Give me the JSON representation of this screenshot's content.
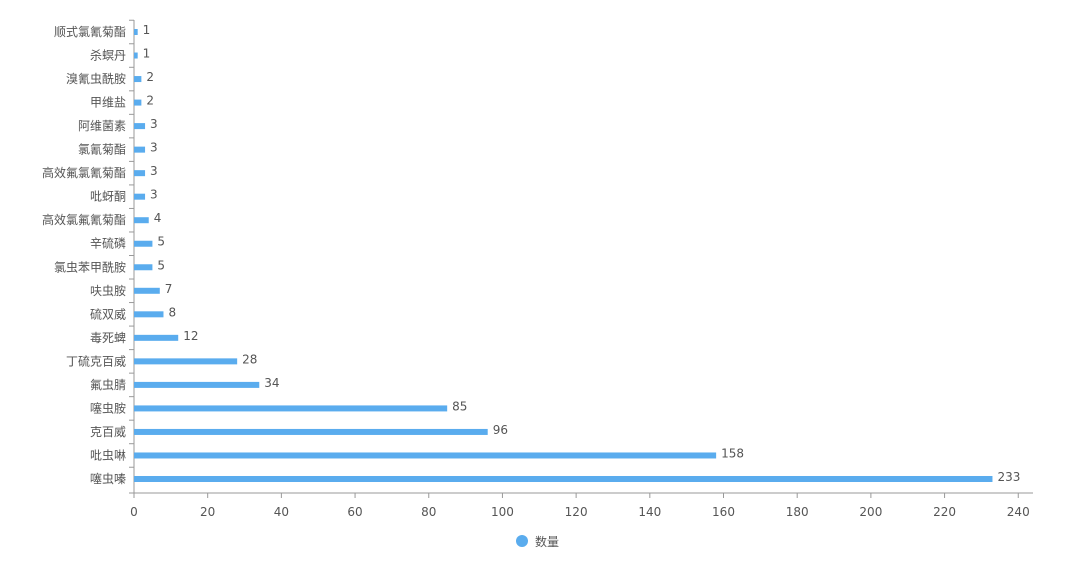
{
  "chart_data": {
    "type": "bar",
    "orientation": "horizontal",
    "categories": [
      "顺式氯氰菊酯",
      "杀螟丹",
      "溴氰虫酰胺",
      "甲维盐",
      "阿维菌素",
      "氯氰菊酯",
      "高效氟氯氰菊酯",
      "吡蚜酮",
      "高效氯氟氰菊酯",
      "辛硫磷",
      "氯虫苯甲酰胺",
      "呋虫胺",
      "硫双威",
      "毒死蜱",
      "丁硫克百威",
      "氟虫腈",
      "噻虫胺",
      "克百威",
      "吡虫啉",
      "噻虫嗪"
    ],
    "series": [
      {
        "name": "数量",
        "values": [
          1,
          1,
          2,
          2,
          3,
          3,
          3,
          3,
          4,
          5,
          5,
          7,
          8,
          12,
          28,
          34,
          85,
          96,
          158,
          233
        ]
      }
    ],
    "xticks": [
      0,
      20,
      40,
      60,
      80,
      100,
      120,
      140,
      160,
      180,
      200,
      220,
      240
    ],
    "xlim": [
      0,
      244
    ],
    "title": "",
    "xlabel": "",
    "ylabel": "",
    "grid": false,
    "legend_position": "bottom-center",
    "color": "#5aacee"
  }
}
